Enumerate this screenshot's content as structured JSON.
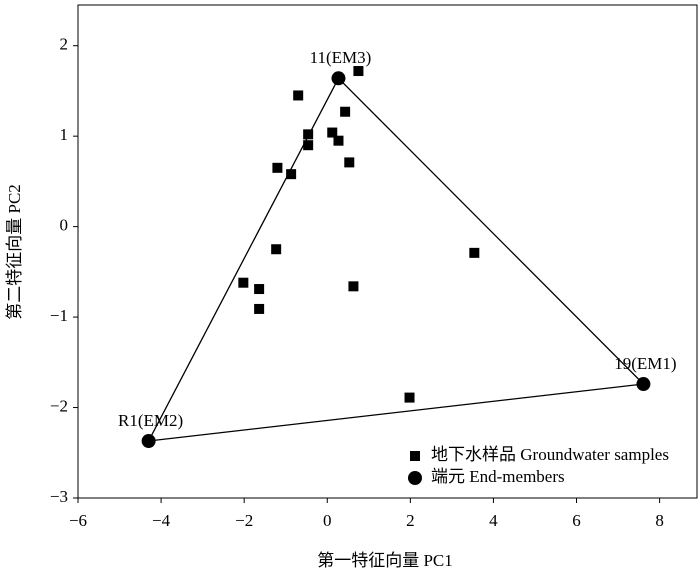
{
  "chart_data": {
    "type": "scatter",
    "x_label": "第一特征向量 PC1",
    "y_label": "第二特征向量 PC2",
    "xlim": [
      -6,
      8.9
    ],
    "ylim": [
      -3,
      2.45
    ],
    "xticks": [
      {
        "value": -6,
        "label": "−6"
      },
      {
        "value": -4,
        "label": "−4"
      },
      {
        "value": -2,
        "label": "−2"
      },
      0,
      2,
      4,
      6,
      8
    ],
    "yticks": [
      {
        "value": -3,
        "label": "−3"
      },
      {
        "value": -2,
        "label": "−2"
      },
      {
        "value": -1,
        "label": "−1"
      },
      0,
      1,
      2
    ],
    "series": [
      {
        "name": "地下水样品 Groundwater samples",
        "color": "#000000",
        "marker": "square",
        "x": [
          0.75,
          -0.7,
          0.43,
          -0.46,
          -0.46,
          0.12,
          0.27,
          0.53,
          -1.2,
          -0.87,
          -1.23,
          3.54,
          -2.02,
          -1.64,
          0.63,
          -1.64,
          1.98
        ],
        "values": [
          1.72,
          1.45,
          1.27,
          1.02,
          0.9,
          1.04,
          0.95,
          0.71,
          0.65,
          0.58,
          -0.25,
          -0.29,
          -0.62,
          -0.69,
          -0.66,
          -0.91,
          -1.89
        ]
      },
      {
        "name": "端元 End-members",
        "color": "#000000",
        "marker": "circle",
        "x": [
          0.27,
          7.61,
          -4.3
        ],
        "values": [
          1.64,
          -1.74,
          -2.37
        ],
        "point_labels": [
          "11(EM3)",
          "19(EM1)",
          "R1(EM2)"
        ]
      }
    ]
  }
}
